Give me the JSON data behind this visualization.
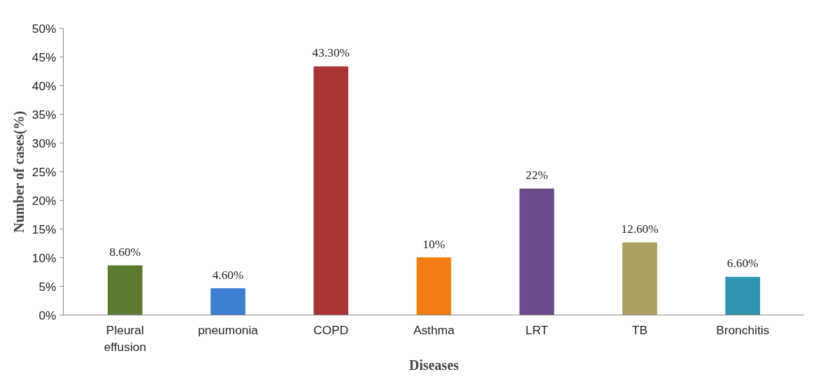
{
  "chart_data": {
    "type": "bar",
    "xlabel": "Diseases",
    "ylabel": "Number of cases(%)",
    "categories": [
      "Pleural effusion",
      "pneumonia",
      "COPD",
      "Asthma",
      "LRT",
      "TB",
      "Bronchitis"
    ],
    "values": [
      8.6,
      4.6,
      43.3,
      10,
      22,
      12.6,
      6.6
    ],
    "colors": [
      "#5b7a2f",
      "#3d7fd0",
      "#a83434",
      "#f07c12",
      "#6b4c8c",
      "#a9a062",
      "#2f93b1"
    ],
    "value_labels": [
      "8.60%",
      "4.60%",
      "43.30%",
      "10%",
      "22%",
      "12.60%",
      "6.60%"
    ],
    "ylim": [
      0,
      50
    ],
    "yticks": [
      {
        "value": 0,
        "label": "0%"
      },
      {
        "value": 5,
        "label": "5%"
      },
      {
        "value": 10,
        "label": "10%"
      },
      {
        "value": 15,
        "label": "15%"
      },
      {
        "value": 20,
        "label": "20%"
      },
      {
        "value": 25,
        "label": "25%"
      },
      {
        "value": 30,
        "label": "30%"
      },
      {
        "value": 35,
        "label": "35%"
      },
      {
        "value": 40,
        "label": "40%"
      },
      {
        "value": 45,
        "label": "45%"
      },
      {
        "value": 50,
        "label": "50%"
      }
    ],
    "grid": false
  }
}
